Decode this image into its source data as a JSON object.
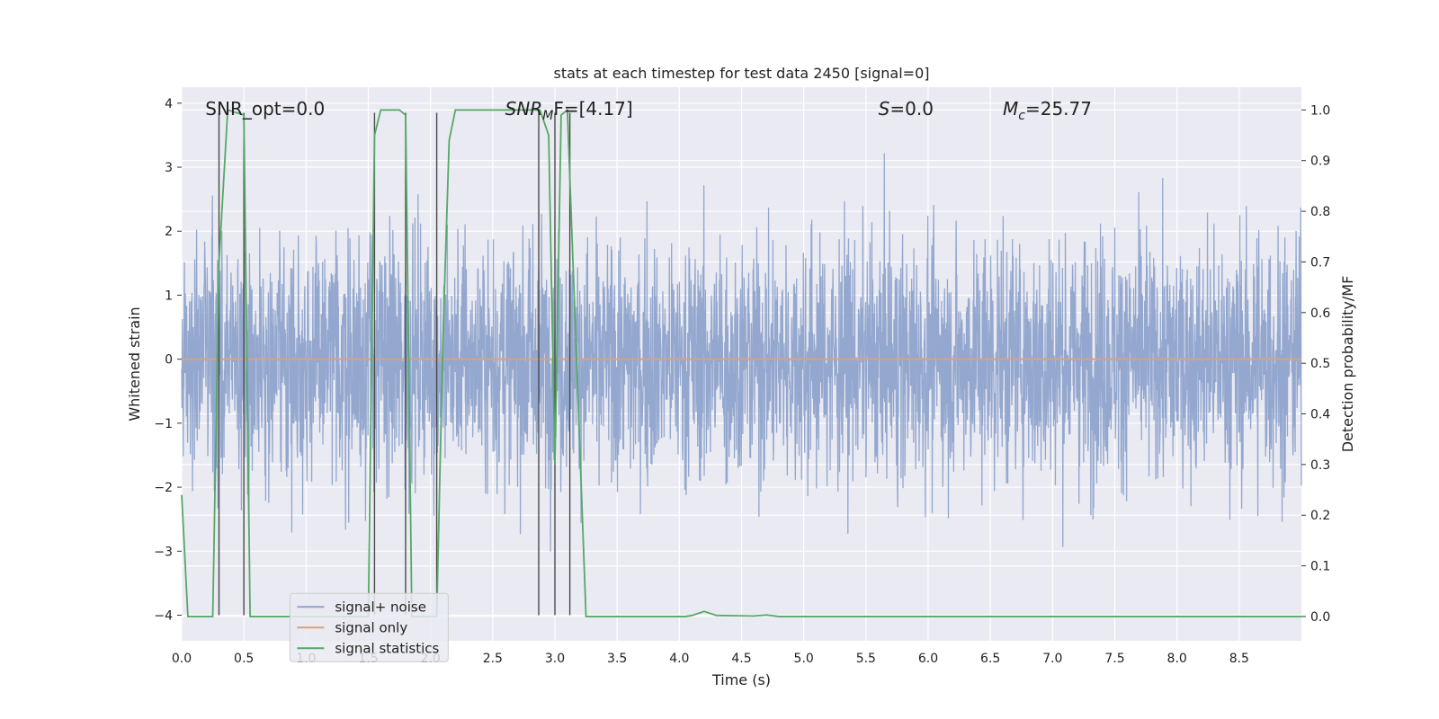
{
  "chart_data": {
    "type": "line",
    "title": "stats at each timestep for test data 2450 [signal=0]",
    "xlabel": "Time (s)",
    "ylabel_left": "Whitened strain",
    "ylabel_right": "Detection probability/MF",
    "xlim": [
      0,
      9.0
    ],
    "ylim_left": [
      -4.4,
      4.25
    ],
    "ylim_right": [
      -0.048,
      1.045
    ],
    "xticks": [
      "0.0",
      "0.5",
      "1.0",
      "1.5",
      "2.0",
      "2.5",
      "3.0",
      "3.5",
      "4.0",
      "4.5",
      "5.0",
      "5.5",
      "6.0",
      "6.5",
      "7.0",
      "7.5",
      "8.0",
      "8.5"
    ],
    "yticks_left": [
      "−4",
      "−3",
      "−2",
      "−1",
      "0",
      "1",
      "2",
      "3",
      "4"
    ],
    "yticks_right": [
      "0.0",
      "0.1",
      "0.2",
      "0.3",
      "0.4",
      "0.5",
      "0.6",
      "0.7",
      "0.8",
      "0.9",
      "1.0"
    ],
    "grid": true,
    "legend_position": "lower-left",
    "annotations": {
      "snr_opt": "SNR_opt=0.0",
      "snr_mf_base": "SNR",
      "snr_mf_sub": "M",
      "snr_mf_rest": "F=[4.17]",
      "s_label": "S",
      "s_value": "=0.0",
      "mc_base": "M",
      "mc_sub": "c",
      "mc_value": "=25.77"
    },
    "series": [
      {
        "name": "signal+ noise",
        "axis": "left",
        "color": "#8fa4cc",
        "description_values": "whitened noise, approx. ±2 typical, peaks to ±3.8",
        "amplitude": 1.6,
        "peak": 3.8
      },
      {
        "name": "signal only",
        "axis": "left",
        "color": "#dd9f7c",
        "x": [
          0,
          9.0
        ],
        "y": [
          0,
          0
        ]
      },
      {
        "name": "signal statistics",
        "axis": "right",
        "color": "#55a868",
        "x": [
          0.0,
          0.05,
          0.25,
          0.3,
          0.37,
          0.5,
          0.55,
          0.6,
          1.5,
          1.55,
          1.6,
          1.75,
          1.8,
          1.85,
          2.05,
          2.1,
          2.15,
          2.2,
          2.35,
          2.88,
          2.95,
          3.0,
          3.05,
          3.1,
          3.25,
          3.3,
          4.05,
          4.1,
          4.2,
          4.3,
          4.6,
          4.7,
          4.8,
          9.0
        ],
        "y": [
          0.24,
          0.0,
          0.0,
          0.7,
          1.0,
          0.99,
          0.0,
          0.0,
          0.0,
          0.95,
          1.0,
          1.0,
          0.99,
          0.0,
          0.0,
          0.55,
          0.94,
          1.0,
          1.0,
          1.0,
          0.95,
          0.3,
          0.99,
          1.0,
          0.0,
          0.0,
          0.0,
          0.002,
          0.01,
          0.002,
          0.001,
          0.003,
          0.0,
          0.0
        ]
      }
    ],
    "vertical_markers": {
      "color": "#4a4a4a",
      "x": [
        0.3,
        0.5,
        1.55,
        1.8,
        2.05,
        2.87,
        3.0,
        3.12
      ]
    }
  }
}
